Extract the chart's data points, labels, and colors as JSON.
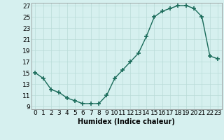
{
  "x": [
    0,
    1,
    2,
    3,
    4,
    5,
    6,
    7,
    8,
    9,
    10,
    11,
    12,
    13,
    14,
    15,
    16,
    17,
    18,
    19,
    20,
    21,
    22,
    23
  ],
  "y": [
    15,
    14,
    12,
    11.5,
    10.5,
    10,
    9.5,
    9.5,
    9.5,
    11,
    14,
    15.5,
    17,
    18.5,
    21.5,
    25,
    26,
    26.5,
    27,
    27,
    26.5,
    25,
    18,
    17.5
  ],
  "line_color": "#1a6b5a",
  "marker": "+",
  "marker_size": 4,
  "marker_lw": 1.2,
  "bg_color": "#d6f0ef",
  "grid_color": "#b8dbd8",
  "xlabel": "Humidex (Indice chaleur)",
  "xlim": [
    -0.5,
    23.5
  ],
  "ylim": [
    8.5,
    27.5
  ],
  "yticks": [
    9,
    11,
    13,
    15,
    17,
    19,
    21,
    23,
    25,
    27
  ],
  "xtick_labels": [
    "0",
    "1",
    "2",
    "3",
    "4",
    "5",
    "6",
    "7",
    "8",
    "9",
    "10",
    "11",
    "12",
    "13",
    "14",
    "15",
    "16",
    "17",
    "18",
    "19",
    "20",
    "21",
    "22",
    "23"
  ],
  "xlabel_fontsize": 7,
  "tick_fontsize": 6.5,
  "line_width": 1.0
}
